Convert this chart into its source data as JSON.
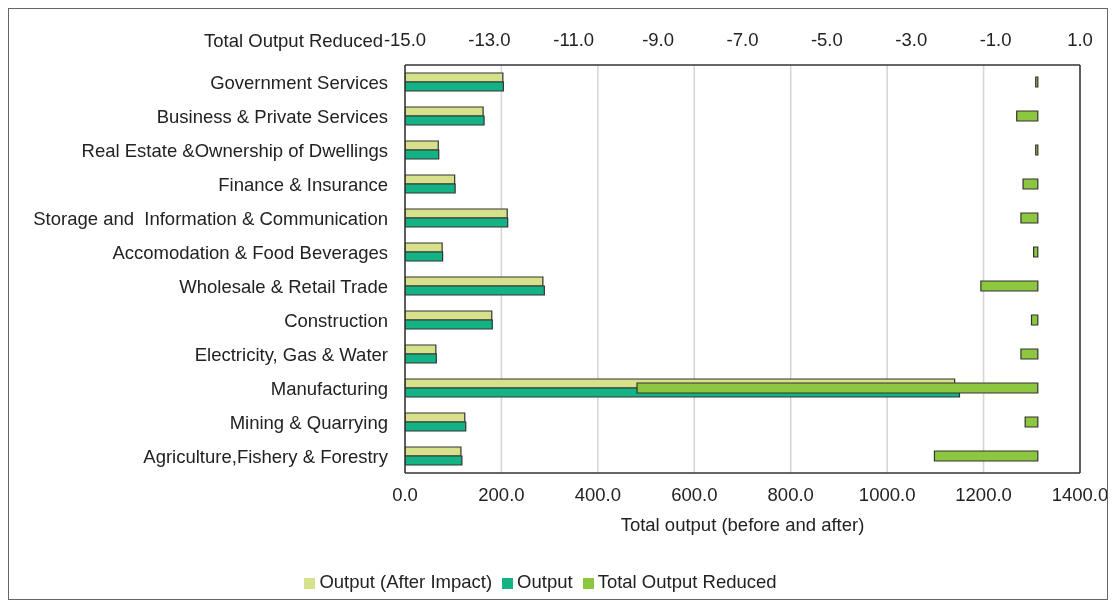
{
  "chart_data": {
    "type": "bar",
    "orientation": "horizontal",
    "categories": [
      "Government Services",
      "Business & Private Services",
      "Real Estate &Ownership of Dwellings",
      "Finance & Insurance",
      "Storage and  Information & Communication",
      "Accomodation & Food Beverages",
      "Wholesale & Retail Trade",
      "Construction",
      "Electricity, Gas & Water",
      "Manufacturing",
      "Mining & Quarrying",
      "Agriculture,Fishery & Forestry"
    ],
    "series": [
      {
        "name": "Output (After Impact)",
        "color": "#d7e08a",
        "values": [
          203,
          162,
          69,
          103,
          212,
          77,
          286,
          180,
          64,
          1140,
          124,
          116
        ]
      },
      {
        "name": "Output",
        "color": "#14b386",
        "values": [
          204,
          164,
          70,
          104,
          213,
          78,
          289,
          181,
          65,
          1150,
          126,
          118
        ]
      },
      {
        "name": "Total Output Reduced",
        "color": "#8dc63f",
        "axis": "x2",
        "values": [
          -0.05,
          -0.5,
          -0.05,
          -0.35,
          -0.4,
          -0.1,
          -1.35,
          -0.15,
          -0.4,
          -9.5,
          -0.3,
          -2.45
        ]
      }
    ],
    "xlabel": "Total output (before and after)",
    "x2label": "Total Output Reduced",
    "xlim": [
      0,
      1400
    ],
    "xticks": [
      {
        "value": 0,
        "label": "0.0"
      },
      {
        "value": 200,
        "label": "200.0"
      },
      {
        "value": 400,
        "label": "400.0"
      },
      {
        "value": 600,
        "label": "600.0"
      },
      {
        "value": 800,
        "label": "800.0"
      },
      {
        "value": 1000,
        "label": "1000.0"
      },
      {
        "value": 1200,
        "label": "1200.0"
      },
      {
        "value": 1400,
        "label": "1400.0"
      }
    ],
    "x2lim": [
      -15,
      1
    ],
    "x2ticks": [
      {
        "value": -15,
        "label": "-15.0"
      },
      {
        "value": -13,
        "label": "-13.0"
      },
      {
        "value": -11,
        "label": "-11.0"
      },
      {
        "value": -9,
        "label": "-9.0"
      },
      {
        "value": -7,
        "label": "-7.0"
      },
      {
        "value": -5,
        "label": "-5.0"
      },
      {
        "value": -3,
        "label": "-3.0"
      },
      {
        "value": -1,
        "label": "-1.0"
      },
      {
        "value": 1,
        "label": "1.0"
      }
    ],
    "grid": "x",
    "legend": "bottom"
  }
}
